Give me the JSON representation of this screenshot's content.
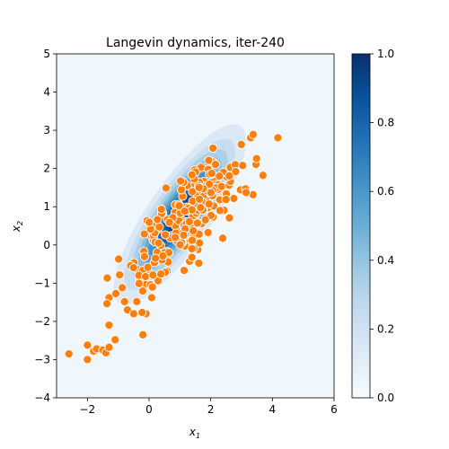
{
  "chart_data": {
    "type": "scatter",
    "title": "Langevin dynamics, iter-240",
    "xlabel": "x",
    "xlabel_sub": "1",
    "ylabel": "x",
    "ylabel_sub": "2",
    "xlim": [
      -3,
      6
    ],
    "ylim": [
      -4,
      5
    ],
    "xticks": [
      -2,
      0,
      2,
      4,
      6
    ],
    "yticks": [
      -4,
      -3,
      -2,
      -1,
      0,
      1,
      2,
      3,
      4,
      5
    ],
    "grid": false,
    "density": {
      "kind": "filled-contour",
      "colormap": "Blues",
      "mean": [
        1.0,
        0.8
      ],
      "std": [
        1.0,
        1.1
      ],
      "correlation": 0.82,
      "levels": [
        0.0,
        0.1,
        0.2,
        0.3,
        0.4,
        0.5,
        0.6,
        0.7,
        0.8,
        0.9,
        1.0
      ]
    },
    "colorbar": {
      "min": 0.0,
      "max": 1.0,
      "ticks": [
        "0.0",
        "0.2",
        "0.4",
        "0.6",
        "0.8",
        "1.0"
      ]
    },
    "points": {
      "color": "#ff7f0e",
      "edgecolor": "#ffffff",
      "tail": [
        [
          -2.6,
          -2.85
        ],
        [
          -2.0,
          -2.62
        ],
        [
          -2.0,
          -3.0
        ],
        [
          -1.8,
          -2.78
        ],
        [
          -1.7,
          -2.72
        ],
        [
          -1.5,
          -2.75
        ],
        [
          -1.4,
          -2.82
        ],
        [
          -1.3,
          -2.68
        ],
        [
          -1.1,
          -2.48
        ],
        [
          -1.3,
          -2.1
        ],
        [
          -1.3,
          -1.38
        ],
        [
          -0.7,
          -1.7
        ],
        [
          -0.5,
          -1.8
        ],
        [
          -0.1,
          -1.8
        ],
        [
          -0.2,
          -2.35
        ]
      ],
      "cluster": {
        "n": 230,
        "mean": [
          1.25,
          0.75
        ],
        "std": [
          0.95,
          0.95
        ],
        "correlation": 0.78,
        "seed": 240
      }
    }
  }
}
